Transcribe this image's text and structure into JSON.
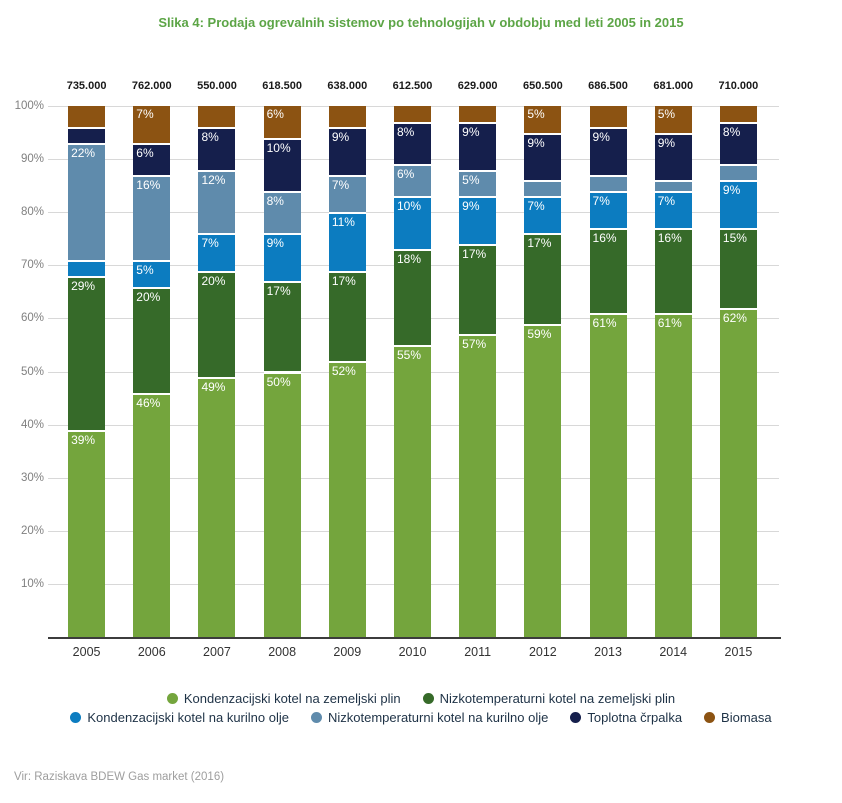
{
  "title": "Slika 4: Prodaja ogrevalnih sistemov po tehnologijah v obdobju med leti 2005 in 2015",
  "source": "Vir: Raziskava BDEW Gas market (2016)",
  "colors": {
    "title_color": "#5CA546",
    "grid": "#D8D8D8",
    "axis": "#3C3C3C",
    "ytick": "#808080",
    "xtick": "#333333",
    "total": "#1A1A1A",
    "legend_text": "#1E3246",
    "source_text": "#9E9E9E",
    "bar_label": "#FFFFFF"
  },
  "chart_data": {
    "type": "bar",
    "subtype": "stacked-100-percent",
    "stacked": true,
    "title": "Slika 4: Prodaja ogrevalnih sistemov po tehnologijah v obdobju med leti 2005 in 2015",
    "xlabel": "",
    "ylabel": "",
    "ylim": [
      0,
      100
    ],
    "grid": true,
    "legend_position": "bottom",
    "categories": [
      "2005",
      "2006",
      "2007",
      "2008",
      "2009",
      "2010",
      "2011",
      "2012",
      "2013",
      "2014",
      "2015"
    ],
    "totals": [
      "735.000",
      "762.000",
      "550.000",
      "618.500",
      "638.000",
      "612.500",
      "629.000",
      "650.500",
      "686.500",
      "681.000",
      "710.000"
    ],
    "y_ticks": [
      "100%",
      "90%",
      "80%",
      "70%",
      "60%",
      "50%",
      "40%",
      "30%",
      "20%",
      "10%"
    ],
    "label_min_shown": 5,
    "series": [
      {
        "name": "Kondenzacijski kotel na zemeljski plin",
        "color": "#74A53D",
        "values": [
          39,
          46,
          49,
          50,
          52,
          55,
          57,
          59,
          61,
          61,
          62
        ]
      },
      {
        "name": "Nizkotemperaturni kotel na zemeljski plin",
        "color": "#366A29",
        "values": [
          29,
          20,
          20,
          17,
          17,
          18,
          17,
          17,
          16,
          16,
          15
        ]
      },
      {
        "name": "Kondenzacijski kotel na kurilno olje",
        "color": "#0C7CC0",
        "values": [
          3,
          5,
          7,
          9,
          11,
          10,
          9,
          7,
          7,
          7,
          9
        ]
      },
      {
        "name": "Nizkotemperaturni kotel na kurilno olje",
        "color": "#5F8BAC",
        "values": [
          22,
          16,
          12,
          8,
          7,
          6,
          5,
          3,
          3,
          2,
          3
        ]
      },
      {
        "name": "Toplotna črpalka",
        "color": "#151F4C",
        "values": [
          3,
          6,
          8,
          10,
          9,
          8,
          9,
          9,
          9,
          9,
          8
        ]
      },
      {
        "name": "Biomasa",
        "color": "#8C5312",
        "values": [
          4,
          7,
          4,
          6,
          4,
          3,
          3,
          5,
          4,
          5,
          3
        ]
      }
    ],
    "legend_rows": [
      [
        0,
        1
      ],
      [
        2,
        3,
        4,
        5
      ]
    ]
  }
}
